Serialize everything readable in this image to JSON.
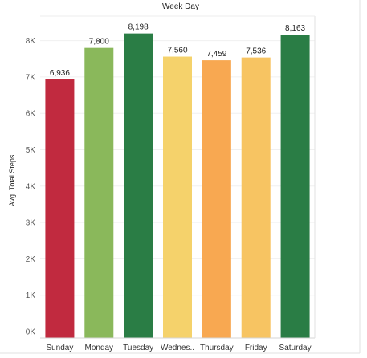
{
  "chart_data": {
    "type": "bar",
    "title": "Week Day",
    "xlabel": "",
    "ylabel": "Avg. Total Steps",
    "categories": [
      "Sunday",
      "Monday",
      "Tuesday",
      "Wednes..",
      "Thursday",
      "Friday",
      "Saturday"
    ],
    "values": [
      6936,
      7800,
      8198,
      7560,
      7459,
      7536,
      8163
    ],
    "value_labels": [
      "6,936",
      "7,800",
      "8,198",
      "7,560",
      "7,459",
      "7,536",
      "8,163"
    ],
    "colors": [
      "#c12a3f",
      "#8ab85b",
      "#2a7d45",
      "#f5d26b",
      "#f8a851",
      "#f7c462",
      "#2a7d45"
    ],
    "ylim": [
      0,
      8500
    ],
    "yticks": [
      0,
      1000,
      2000,
      3000,
      4000,
      5000,
      6000,
      7000,
      8000
    ],
    "ytick_labels": [
      "0K",
      "1K",
      "2K",
      "3K",
      "4K",
      "5K",
      "6K",
      "7K",
      "8K"
    ],
    "grid": true,
    "legend": "none"
  }
}
